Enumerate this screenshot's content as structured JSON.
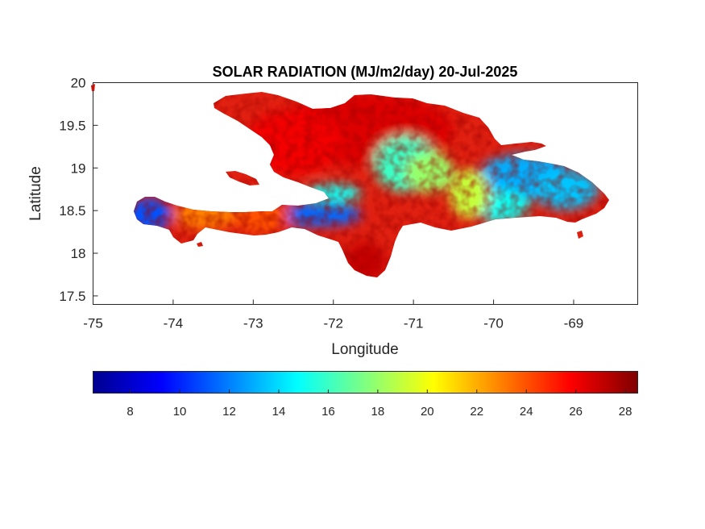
{
  "title": "SOLAR RADIATION (MJ/m2/day) 20-Jul-2025",
  "chart_data": {
    "type": "heatmap",
    "title": "SOLAR RADIATION (MJ/m2/day) 20-Jul-2025",
    "xlabel": "Longitude",
    "ylabel": "Latitude",
    "xlim": [
      -75,
      -68.2
    ],
    "ylim": [
      17.4,
      20
    ],
    "xticks": [
      "-75",
      "-74",
      "-73",
      "-72",
      "-71",
      "-70",
      "-69"
    ],
    "yticks": [
      "17.5",
      "18",
      "18.5",
      "19",
      "19.5",
      "20"
    ],
    "colormap": "jet",
    "colorbar": {
      "orientation": "horizontal",
      "placement": "below",
      "range": [
        6.5,
        28.5
      ],
      "ticks": [
        "8",
        "10",
        "12",
        "14",
        "16",
        "18",
        "20",
        "22",
        "24",
        "26",
        "28"
      ]
    },
    "regions": [
      {
        "name": "",
        "lon": -71.6,
        "lat": 19.45,
        "value": 26.5
      },
      {
        "name": "",
        "lon": -72.5,
        "lat": 19.3,
        "value": 26
      },
      {
        "name": "",
        "lon": -71.1,
        "lat": 19.05,
        "value": 16
      },
      {
        "name": "",
        "lon": -70.8,
        "lat": 18.95,
        "value": 18
      },
      {
        "name": "",
        "lon": -69.6,
        "lat": 18.9,
        "value": 13
      },
      {
        "name": "",
        "lon": -69.1,
        "lat": 18.75,
        "value": 13.5
      },
      {
        "name": "",
        "lon": -69.9,
        "lat": 18.55,
        "value": 15
      },
      {
        "name": "",
        "lon": -70.3,
        "lat": 18.7,
        "value": 19
      },
      {
        "name": "",
        "lon": -74.3,
        "lat": 18.45,
        "value": 11
      },
      {
        "name": "",
        "lon": -73.6,
        "lat": 18.45,
        "value": 23
      },
      {
        "name": "",
        "lon": -72.2,
        "lat": 18.45,
        "value": 11.5
      },
      {
        "name": "",
        "lon": -72.0,
        "lat": 18.7,
        "value": 15
      },
      {
        "name": "",
        "lon": -71.6,
        "lat": 17.9,
        "value": 27
      },
      {
        "name": "",
        "lon": -72.9,
        "lat": 18.45,
        "value": 24
      }
    ]
  }
}
